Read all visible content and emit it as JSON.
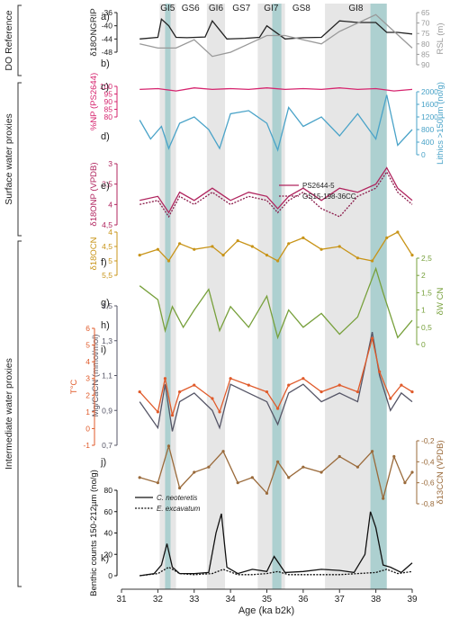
{
  "chart_data": {
    "type": "line",
    "xlabel": "Age (ka b2k)",
    "x_ticks": [
      "31",
      "32",
      "33",
      "34",
      "35",
      "36",
      "37",
      "38",
      "39"
    ],
    "xlim": [
      31,
      39
    ],
    "groups": [
      {
        "label": "DO Reference"
      },
      {
        "label": "Surface water proxies"
      },
      {
        "label": "Intermediate water proxies"
      }
    ],
    "interstadials": [
      {
        "label": "GI5",
        "range": [
          32.05,
          32.5
        ]
      },
      {
        "label": "GS6",
        "range": null
      },
      {
        "label": "GI6",
        "range": [
          33.35,
          33.85
        ]
      },
      {
        "label": "GS7",
        "range": null
      },
      {
        "label": "GI7",
        "range": [
          34.75,
          35.5
        ]
      },
      {
        "label": "GS8",
        "range": null
      },
      {
        "label": "GI8",
        "range": [
          36.6,
          38.3
        ]
      }
    ],
    "teal_bands": [
      [
        32.2,
        32.35
      ],
      [
        35.15,
        35.4
      ],
      [
        37.85,
        38.3
      ]
    ],
    "panels": [
      {
        "letter": "a)",
        "ylabel": "δ18ONGRIP",
        "ticks": [
          "-36",
          "-40",
          "-44",
          "-48"
        ],
        "side": "left",
        "color": "#222222",
        "x": [
          31.5,
          32.0,
          32.1,
          32.3,
          32.5,
          32.8,
          33.3,
          33.5,
          33.9,
          34.4,
          34.8,
          35.0,
          35.5,
          36.0,
          36.5,
          37.0,
          37.5,
          38.0,
          38.3,
          38.6,
          39.0
        ],
        "values": [
          -44,
          -43.5,
          -38,
          -40,
          -43.5,
          -43.6,
          -43.4,
          -38.5,
          -44,
          -43.8,
          -43.5,
          -40,
          -44,
          -43.6,
          -43.5,
          -38.5,
          -39,
          -39,
          -42,
          -42,
          -42.5
        ]
      },
      {
        "letter": "b)",
        "ylabel": "RSL (m)",
        "ticks": [
          "65",
          "70",
          "75",
          "80",
          "85",
          "90"
        ],
        "side": "right",
        "color": "#999999",
        "x": [
          31.5,
          32.0,
          32.5,
          33.0,
          33.5,
          34.0,
          34.5,
          35.0,
          35.5,
          36.0,
          36.5,
          37.0,
          37.5,
          38.0,
          38.5,
          39.0
        ],
        "values": [
          80,
          82,
          82,
          78,
          86,
          84,
          80,
          76,
          76,
          78,
          80,
          74,
          70,
          66,
          74,
          82
        ]
      },
      {
        "letter": "c)",
        "ylabel": "%NP (PS2644)",
        "ticks": [
          "100",
          "95",
          "90",
          "85",
          "80"
        ],
        "side": "left",
        "color": "#d6246e",
        "x": [
          31.5,
          32.0,
          32.5,
          33.0,
          33.5,
          34.0,
          34.5,
          35.0,
          35.5,
          36.0,
          36.5,
          37.0,
          37.5,
          38.0,
          38.5,
          39.0
        ],
        "values": [
          98,
          98.5,
          97,
          99,
          98,
          98.5,
          98,
          99,
          98,
          98.5,
          98,
          99,
          98,
          98.5,
          97,
          98
        ]
      },
      {
        "letter": "d)",
        "ylabel": "Lithics >150µm (no/g)",
        "ticks": [
          "2000",
          "1600",
          "1200",
          "800",
          "400",
          "0"
        ],
        "side": "right",
        "color": "#4aa3c8",
        "x": [
          31.5,
          31.8,
          32.1,
          32.3,
          32.6,
          33.0,
          33.4,
          33.7,
          34.0,
          34.5,
          35.0,
          35.3,
          35.6,
          36.0,
          36.5,
          37.0,
          37.5,
          38.0,
          38.3,
          38.6,
          39.0
        ],
        "values": [
          1100,
          500,
          900,
          200,
          1000,
          1200,
          800,
          200,
          1300,
          1400,
          1000,
          150,
          1500,
          900,
          1200,
          600,
          1300,
          500,
          1900,
          300,
          800
        ]
      },
      {
        "letter": "e)",
        "ylabel": "δ18ONP (VPDB)",
        "ticks": [
          "3",
          "3,5",
          "4",
          "4,5"
        ],
        "side": "left",
        "color": "#b0245e",
        "series": [
          {
            "name": "PS2644-5",
            "x": [
              31.5,
              32.0,
              32.3,
              32.6,
              33.0,
              33.5,
              34.0,
              34.5,
              35.0,
              35.3,
              35.6,
              36.0,
              36.5,
              37.0,
              37.5,
              38.0,
              38.3,
              38.6,
              39.0
            ],
            "values": [
              3.9,
              3.8,
              4.2,
              3.7,
              3.9,
              3.6,
              3.9,
              3.7,
              3.8,
              4.1,
              3.8,
              3.6,
              3.9,
              3.6,
              3.7,
              3.5,
              3.1,
              3.6,
              3.9
            ]
          },
          {
            "name": "GS15-198-36CC",
            "x": [
              31.5,
              32.0,
              32.3,
              32.6,
              33.0,
              33.5,
              34.0,
              34.5,
              35.0,
              35.3,
              35.6,
              36.0,
              36.5,
              37.0,
              37.5,
              38.0,
              38.3,
              38.6,
              39.0
            ],
            "values": [
              4.0,
              3.9,
              4.3,
              3.8,
              4.0,
              3.7,
              4.0,
              3.8,
              3.9,
              4.2,
              3.9,
              3.7,
              4.1,
              4.3,
              3.8,
              3.6,
              3.2,
              3.7,
              4.0
            ]
          }
        ]
      },
      {
        "letter": "f)",
        "ylabel": "δ18OCN",
        "ticks": [
          "4",
          "4,5",
          "5",
          "5,5"
        ],
        "side": "left",
        "color": "#c89418",
        "x": [
          31.5,
          32.0,
          32.3,
          32.6,
          33.0,
          33.5,
          33.8,
          34.2,
          34.6,
          35.0,
          35.3,
          35.6,
          36.0,
          36.5,
          37.0,
          37.5,
          37.9,
          38.3,
          38.6,
          39.0
        ],
        "values": [
          4.8,
          4.6,
          5.0,
          4.4,
          4.6,
          4.5,
          4.8,
          4.3,
          4.5,
          4.8,
          5.0,
          4.4,
          4.2,
          4.6,
          4.5,
          4.9,
          5.0,
          4.2,
          4.0,
          4.8
        ]
      },
      {
        "letter": "g)",
        "ylabel": "δW CN",
        "ticks": [
          "2,5",
          "2",
          "1,5",
          "1",
          "0,5",
          "0"
        ],
        "side": "right",
        "color": "#77a03b",
        "x": [
          31.5,
          32.0,
          32.2,
          32.4,
          32.7,
          33.0,
          33.4,
          33.7,
          34.0,
          34.5,
          35.0,
          35.3,
          35.6,
          36.0,
          36.5,
          37.0,
          37.5,
          38.0,
          38.2,
          38.6,
          39.0
        ],
        "values": [
          1.7,
          1.3,
          0.4,
          1.1,
          0.5,
          1.0,
          1.6,
          0.4,
          1.1,
          0.5,
          1.4,
          0.2,
          1.0,
          0.5,
          0.9,
          0.3,
          0.8,
          2.2,
          1.5,
          0.2,
          0.7
        ]
      },
      {
        "letter": "h)",
        "ylabel": "Mg/CaCN (mmol/mol)",
        "ticks": [
          "1,5",
          "1,3",
          "1,1",
          "0,9",
          "0,7"
        ],
        "side": "left",
        "color": "#555566",
        "x": [
          31.5,
          32.0,
          32.2,
          32.4,
          32.6,
          33.0,
          33.5,
          33.7,
          34.0,
          34.5,
          35.0,
          35.3,
          35.6,
          36.0,
          36.5,
          37.0,
          37.5,
          37.9,
          38.1,
          38.4,
          38.7,
          39.0
        ],
        "values": [
          0.95,
          0.8,
          1.05,
          0.78,
          0.95,
          1.0,
          0.9,
          0.8,
          1.05,
          1.0,
          0.95,
          0.82,
          1.0,
          1.05,
          0.95,
          1.0,
          0.95,
          1.35,
          1.1,
          0.9,
          1.0,
          0.95
        ]
      },
      {
        "letter": "i)",
        "ylabel": "T°C",
        "ticks": [
          "6",
          "5",
          "4",
          "3",
          "2",
          "1",
          "0",
          "-1"
        ],
        "side": "left",
        "color": "#e05a2a",
        "x": [
          31.5,
          32.0,
          32.2,
          32.4,
          32.6,
          33.0,
          33.5,
          33.7,
          34.0,
          34.5,
          35.0,
          35.3,
          35.6,
          36.0,
          36.5,
          37.0,
          37.5,
          37.9,
          38.1,
          38.4,
          38.7,
          39.0
        ],
        "values": [
          2.2,
          1.0,
          3.0,
          0.8,
          2.2,
          2.6,
          1.8,
          1.0,
          3.0,
          2.6,
          2.2,
          1.2,
          2.6,
          3.0,
          2.2,
          2.6,
          2.2,
          5.4,
          3.4,
          1.8,
          2.6,
          2.2
        ]
      },
      {
        "letter": "j)",
        "ylabel": "δ13CCN (VPDB)",
        "ticks": [
          "-0,2",
          "-0,4",
          "-0,6",
          "-0,8"
        ],
        "side": "right",
        "color": "#9a6a3a",
        "x": [
          31.5,
          32.0,
          32.3,
          32.6,
          33.0,
          33.4,
          33.8,
          34.2,
          34.6,
          35.0,
          35.3,
          35.6,
          36.0,
          36.5,
          37.0,
          37.5,
          37.9,
          38.2,
          38.5,
          38.8,
          39.0
        ],
        "values": [
          -0.55,
          -0.6,
          -0.25,
          -0.65,
          -0.5,
          -0.45,
          -0.3,
          -0.6,
          -0.55,
          -0.7,
          -0.4,
          -0.55,
          -0.45,
          -0.5,
          -0.35,
          -0.45,
          -0.3,
          -0.75,
          -0.35,
          -0.6,
          -0.5
        ]
      },
      {
        "letter": "k)",
        "ylabel": "Benthic counts 150-212µm (no/g)",
        "ticks": [
          "80",
          "60",
          "40",
          "20",
          "0"
        ],
        "side": "left",
        "color": "#111111",
        "series": [
          {
            "name": "C. neoteretis",
            "x": [
              31.5,
              31.9,
              32.1,
              32.25,
              32.4,
              32.6,
              33.0,
              33.4,
              33.6,
              33.75,
              33.9,
              34.2,
              34.6,
              35.0,
              35.2,
              35.5,
              36.0,
              36.5,
              37.0,
              37.4,
              37.7,
              37.85,
              38.0,
              38.2,
              38.4,
              38.7,
              39.0
            ],
            "values": [
              0,
              2,
              10,
              30,
              8,
              2,
              2,
              3,
              40,
              58,
              8,
              2,
              6,
              4,
              18,
              3,
              4,
              6,
              5,
              3,
              20,
              60,
              45,
              10,
              8,
              3,
              12
            ]
          },
          {
            "name": "E. excavatum",
            "x": [
              31.5,
              32.0,
              32.3,
              32.6,
              33.0,
              33.5,
              33.8,
              34.2,
              34.6,
              35.0,
              35.3,
              35.6,
              36.0,
              36.5,
              37.0,
              37.5,
              38.0,
              38.3,
              38.6,
              39.0
            ],
            "values": [
              0,
              2,
              8,
              2,
              1,
              2,
              6,
              1,
              1,
              2,
              4,
              1,
              1,
              1,
              1,
              2,
              3,
              6,
              2,
              4
            ]
          }
        ]
      }
    ]
  }
}
